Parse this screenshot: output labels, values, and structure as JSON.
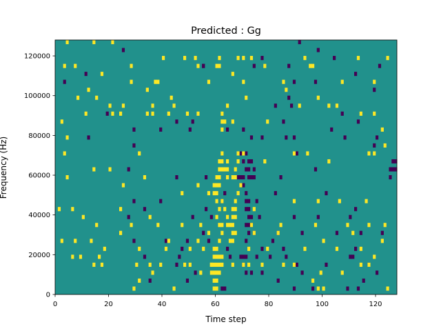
{
  "chart_data": {
    "type": "heatmap",
    "title": "Predicted : Gg",
    "xlabel": "Time step",
    "ylabel": "Frequency (Hz)",
    "xlim": [
      0,
      128
    ],
    "ylim": [
      0,
      128000
    ],
    "x_ticks": [
      0,
      20,
      40,
      60,
      80,
      100,
      120
    ],
    "x_tick_labels": [
      "0",
      "20",
      "40",
      "60",
      "80",
      "100",
      "120"
    ],
    "y_ticks": [
      0,
      20000,
      40000,
      60000,
      80000,
      100000,
      120000
    ],
    "y_tick_labels": [
      "0",
      "20000",
      "40000",
      "60000",
      "80000",
      "100000",
      "120000"
    ],
    "grid": false,
    "colormap": "viridis",
    "colors": {
      "low": "#440154",
      "mid": "#21918c",
      "high": "#fde725"
    },
    "background_value": "mid",
    "n_time_steps": 128,
    "n_freq_bins": 64,
    "bin_height_hz": 2000,
    "cells_high": [
      [
        4,
        126000
      ],
      [
        14,
        126000
      ],
      [
        21,
        126000
      ],
      [
        40,
        118000
      ],
      [
        48,
        118000
      ],
      [
        52,
        118000
      ],
      [
        61,
        118000
      ],
      [
        68,
        118000
      ],
      [
        70,
        118000
      ],
      [
        73,
        118000
      ],
      [
        93,
        118000
      ],
      [
        113,
        118000
      ],
      [
        124,
        118000
      ],
      [
        3,
        114000
      ],
      [
        7,
        114000
      ],
      [
        28,
        114000
      ],
      [
        53,
        114000
      ],
      [
        60,
        114000
      ],
      [
        61,
        114000
      ],
      [
        78,
        114000
      ],
      [
        95,
        114000
      ],
      [
        96,
        114000
      ],
      [
        28,
        106000
      ],
      [
        38,
        106000
      ],
      [
        57,
        106000
      ],
      [
        85,
        106000
      ],
      [
        107,
        106000
      ],
      [
        119,
        106000
      ],
      [
        12,
        102000
      ],
      [
        34,
        102000
      ],
      [
        37,
        106000
      ],
      [
        36,
        94000
      ],
      [
        43,
        98000
      ],
      [
        44,
        94000
      ],
      [
        49,
        90000
      ],
      [
        66,
        110000
      ],
      [
        70,
        106000
      ],
      [
        86,
        102000
      ],
      [
        98,
        98000
      ],
      [
        11,
        90000
      ],
      [
        20,
        94000
      ],
      [
        34,
        90000
      ],
      [
        42,
        90000
      ],
      [
        102,
        94000
      ],
      [
        114,
        90000
      ],
      [
        4,
        78000
      ],
      [
        21,
        90000
      ],
      [
        24,
        90000
      ],
      [
        36,
        90000
      ],
      [
        53,
        90000
      ],
      [
        71,
        98000
      ],
      [
        79,
        86000
      ],
      [
        91,
        94000
      ],
      [
        105,
        94000
      ],
      [
        119,
        90000
      ],
      [
        122,
        82000
      ],
      [
        3,
        70000
      ],
      [
        31,
        70000
      ],
      [
        62,
        70000
      ],
      [
        64,
        66000
      ],
      [
        68,
        70000
      ],
      [
        70,
        70000
      ],
      [
        78,
        66000
      ],
      [
        89,
        70000
      ],
      [
        94,
        70000
      ],
      [
        102,
        66000
      ],
      [
        117,
        70000
      ],
      [
        119,
        70000
      ],
      [
        123,
        74000
      ],
      [
        14,
        62000
      ],
      [
        20,
        62000
      ],
      [
        25,
        54000
      ],
      [
        33,
        58000
      ],
      [
        47,
        50000
      ],
      [
        53,
        54000
      ],
      [
        57,
        50000
      ],
      [
        61,
        54000
      ],
      [
        62,
        46000
      ],
      [
        74,
        42000
      ],
      [
        89,
        46000
      ],
      [
        98,
        46000
      ],
      [
        106,
        46000
      ],
      [
        116,
        46000
      ],
      [
        1,
        42000
      ],
      [
        6,
        42000
      ],
      [
        10,
        38000
      ],
      [
        15,
        34000
      ],
      [
        24,
        42000
      ],
      [
        28,
        34000
      ],
      [
        35,
        38000
      ],
      [
        38,
        34000
      ],
      [
        47,
        34000
      ],
      [
        54,
        34000
      ],
      [
        62,
        34000
      ],
      [
        73,
        34000
      ],
      [
        84,
        34000
      ],
      [
        97,
        34000
      ],
      [
        109,
        34000
      ],
      [
        117,
        34000
      ],
      [
        123,
        34000
      ],
      [
        2,
        26000
      ],
      [
        7,
        26000
      ],
      [
        13,
        26000
      ],
      [
        24,
        30000
      ],
      [
        42,
        26000
      ],
      [
        53,
        26000
      ],
      [
        57,
        30000
      ],
      [
        74,
        30000
      ],
      [
        83,
        30000
      ],
      [
        100,
        26000
      ],
      [
        111,
        30000
      ],
      [
        122,
        26000
      ],
      [
        6,
        18000
      ],
      [
        9,
        18000
      ],
      [
        18,
        22000
      ],
      [
        31,
        22000
      ],
      [
        41,
        22000
      ],
      [
        50,
        22000
      ],
      [
        55,
        22000
      ],
      [
        72,
        22000
      ],
      [
        79,
        22000
      ],
      [
        93,
        22000
      ],
      [
        105,
        22000
      ],
      [
        114,
        22000
      ],
      [
        119,
        18000
      ],
      [
        14,
        14000
      ],
      [
        17,
        14000
      ],
      [
        30,
        14000
      ],
      [
        35,
        14000
      ],
      [
        39,
        14000
      ],
      [
        48,
        14000
      ],
      [
        50,
        14000
      ],
      [
        58,
        14000
      ],
      [
        66,
        14000
      ],
      [
        70,
        14000
      ],
      [
        72,
        14000
      ],
      [
        77,
        14000
      ],
      [
        85,
        14000
      ],
      [
        89,
        14000
      ],
      [
        99,
        10000
      ],
      [
        107,
        10000
      ],
      [
        114,
        14000
      ],
      [
        117,
        14000
      ],
      [
        96,
        6000
      ],
      [
        98,
        2000
      ],
      [
        100,
        2000
      ],
      [
        124,
        2000
      ],
      [
        44,
        2000
      ],
      [
        54,
        10000
      ],
      [
        29,
        2000
      ],
      [
        31,
        6000
      ],
      [
        36,
        10000
      ],
      [
        16,
        18000
      ],
      [
        4,
        58000
      ],
      [
        2,
        86000
      ],
      [
        8,
        98000
      ],
      [
        25,
        94000
      ],
      [
        15,
        98000
      ],
      [
        17,
        110000
      ],
      [
        60,
        58000
      ],
      [
        61,
        62000
      ],
      [
        62,
        66000
      ],
      [
        61,
        66000
      ],
      [
        62,
        62000
      ],
      [
        67,
        58000
      ],
      [
        67,
        62000
      ],
      [
        68,
        66000
      ],
      [
        60,
        50000
      ],
      [
        60,
        46000
      ],
      [
        61,
        42000
      ],
      [
        60,
        38000
      ],
      [
        61,
        34000
      ],
      [
        62,
        30000
      ],
      [
        61,
        26000
      ],
      [
        60,
        22000
      ],
      [
        59,
        22000
      ],
      [
        59,
        18000
      ],
      [
        60,
        18000
      ],
      [
        61,
        18000
      ],
      [
        62,
        18000
      ],
      [
        58,
        14000
      ],
      [
        59,
        14000
      ],
      [
        60,
        14000
      ],
      [
        61,
        14000
      ],
      [
        62,
        14000
      ],
      [
        58,
        10000
      ],
      [
        59,
        10000
      ],
      [
        60,
        10000
      ],
      [
        61,
        10000
      ],
      [
        59,
        6000
      ],
      [
        60,
        6000
      ],
      [
        59,
        2000
      ],
      [
        60,
        2000
      ],
      [
        65,
        26000
      ],
      [
        66,
        26000
      ],
      [
        66,
        30000
      ],
      [
        67,
        30000
      ],
      [
        66,
        34000
      ],
      [
        65,
        34000
      ],
      [
        66,
        38000
      ],
      [
        67,
        38000
      ],
      [
        66,
        42000
      ],
      [
        67,
        42000
      ],
      [
        67,
        46000
      ],
      [
        68,
        50000
      ],
      [
        69,
        54000
      ],
      [
        64,
        38000
      ],
      [
        64,
        34000
      ],
      [
        63,
        42000
      ],
      [
        59,
        50000
      ],
      [
        59,
        54000
      ],
      [
        60,
        54000
      ],
      [
        61,
        58000
      ],
      [
        64,
        62000
      ],
      [
        63,
        62000
      ],
      [
        64,
        58000
      ],
      [
        66,
        58000
      ],
      [
        62,
        86000
      ],
      [
        63,
        86000
      ],
      [
        62,
        90000
      ],
      [
        64,
        94000
      ],
      [
        66,
        86000
      ],
      [
        62,
        82000
      ]
    ],
    "cells_low": [
      [
        25,
        122000
      ],
      [
        91,
        126000
      ],
      [
        77,
        118000
      ],
      [
        98,
        122000
      ],
      [
        3,
        106000
      ],
      [
        55,
        114000
      ],
      [
        74,
        114000
      ],
      [
        89,
        106000
      ],
      [
        97,
        106000
      ],
      [
        112,
        110000
      ],
      [
        119,
        102000
      ],
      [
        87,
        98000
      ],
      [
        82,
        94000
      ],
      [
        88,
        94000
      ],
      [
        107,
        90000
      ],
      [
        113,
        86000
      ],
      [
        85,
        86000
      ],
      [
        45,
        86000
      ],
      [
        19,
        90000
      ],
      [
        29,
        82000
      ],
      [
        39,
        82000
      ],
      [
        50,
        82000
      ],
      [
        51,
        86000
      ],
      [
        64,
        82000
      ],
      [
        70,
        82000
      ],
      [
        73,
        78000
      ],
      [
        77,
        78000
      ],
      [
        86,
        78000
      ],
      [
        89,
        78000
      ],
      [
        103,
        82000
      ],
      [
        108,
        78000
      ],
      [
        120,
        78000
      ],
      [
        119,
        74000
      ],
      [
        12,
        78000
      ],
      [
        29,
        74000
      ],
      [
        69,
        70000
      ],
      [
        70,
        66000
      ],
      [
        71,
        70000
      ],
      [
        72,
        66000
      ],
      [
        73,
        66000
      ],
      [
        71,
        62000
      ],
      [
        72,
        62000
      ],
      [
        74,
        62000
      ],
      [
        68,
        58000
      ],
      [
        69,
        58000
      ],
      [
        70,
        58000
      ],
      [
        72,
        58000
      ],
      [
        73,
        58000
      ],
      [
        74,
        58000
      ],
      [
        69,
        54000
      ],
      [
        70,
        54000
      ],
      [
        71,
        50000
      ],
      [
        72,
        46000
      ],
      [
        71,
        46000
      ],
      [
        72,
        42000
      ],
      [
        71,
        42000
      ],
      [
        72,
        38000
      ],
      [
        73,
        38000
      ],
      [
        71,
        34000
      ],
      [
        72,
        34000
      ],
      [
        73,
        34000
      ],
      [
        72,
        30000
      ],
      [
        74,
        30000
      ],
      [
        71,
        26000
      ],
      [
        69,
        18000
      ],
      [
        70,
        18000
      ],
      [
        71,
        18000
      ],
      [
        70,
        14000
      ],
      [
        71,
        10000
      ],
      [
        27,
        62000
      ],
      [
        27,
        38000
      ],
      [
        29,
        46000
      ],
      [
        33,
        42000
      ],
      [
        39,
        46000
      ],
      [
        56,
        42000
      ],
      [
        58,
        38000
      ],
      [
        76,
        38000
      ],
      [
        75,
        46000
      ],
      [
        82,
        50000
      ],
      [
        84,
        58000
      ],
      [
        90,
        70000
      ],
      [
        97,
        62000
      ],
      [
        101,
        50000
      ],
      [
        112,
        42000
      ],
      [
        110,
        38000
      ],
      [
        114,
        30000
      ],
      [
        122,
        30000
      ],
      [
        127,
        66000
      ],
      [
        126,
        66000
      ],
      [
        127,
        62000
      ],
      [
        126,
        62000
      ],
      [
        125,
        58000
      ],
      [
        125,
        62000
      ],
      [
        29,
        26000
      ],
      [
        33,
        18000
      ],
      [
        41,
        26000
      ],
      [
        45,
        14000
      ],
      [
        46,
        18000
      ],
      [
        47,
        22000
      ],
      [
        49,
        26000
      ],
      [
        55,
        30000
      ],
      [
        57,
        26000
      ],
      [
        64,
        22000
      ],
      [
        65,
        18000
      ],
      [
        75,
        18000
      ],
      [
        77,
        22000
      ],
      [
        81,
        26000
      ],
      [
        83,
        30000
      ],
      [
        85,
        22000
      ],
      [
        86,
        18000
      ],
      [
        90,
        14000
      ],
      [
        92,
        10000
      ],
      [
        101,
        14000
      ],
      [
        110,
        18000
      ],
      [
        111,
        18000
      ],
      [
        112,
        22000
      ],
      [
        120,
        10000
      ],
      [
        35,
        6000
      ],
      [
        49,
        6000
      ],
      [
        52,
        10000
      ],
      [
        62,
        2000
      ],
      [
        63,
        2000
      ],
      [
        73,
        10000
      ],
      [
        77,
        10000
      ],
      [
        83,
        6000
      ],
      [
        89,
        2000
      ],
      [
        96,
        2000
      ],
      [
        109,
        2000
      ],
      [
        113,
        2000
      ],
      [
        115,
        6000
      ],
      [
        117,
        14000
      ],
      [
        105,
        30000
      ],
      [
        98,
        38000
      ],
      [
        92,
        30000
      ],
      [
        80,
        18000
      ],
      [
        62,
        46000
      ],
      [
        63,
        50000
      ],
      [
        56,
        58000
      ],
      [
        45,
        58000
      ],
      [
        51,
        38000
      ],
      [
        89,
        38000
      ],
      [
        55,
        114000
      ],
      [
        87,
        114000
      ],
      [
        121,
        114000
      ],
      [
        104,
        118000
      ],
      [
        11,
        110000
      ]
    ]
  }
}
